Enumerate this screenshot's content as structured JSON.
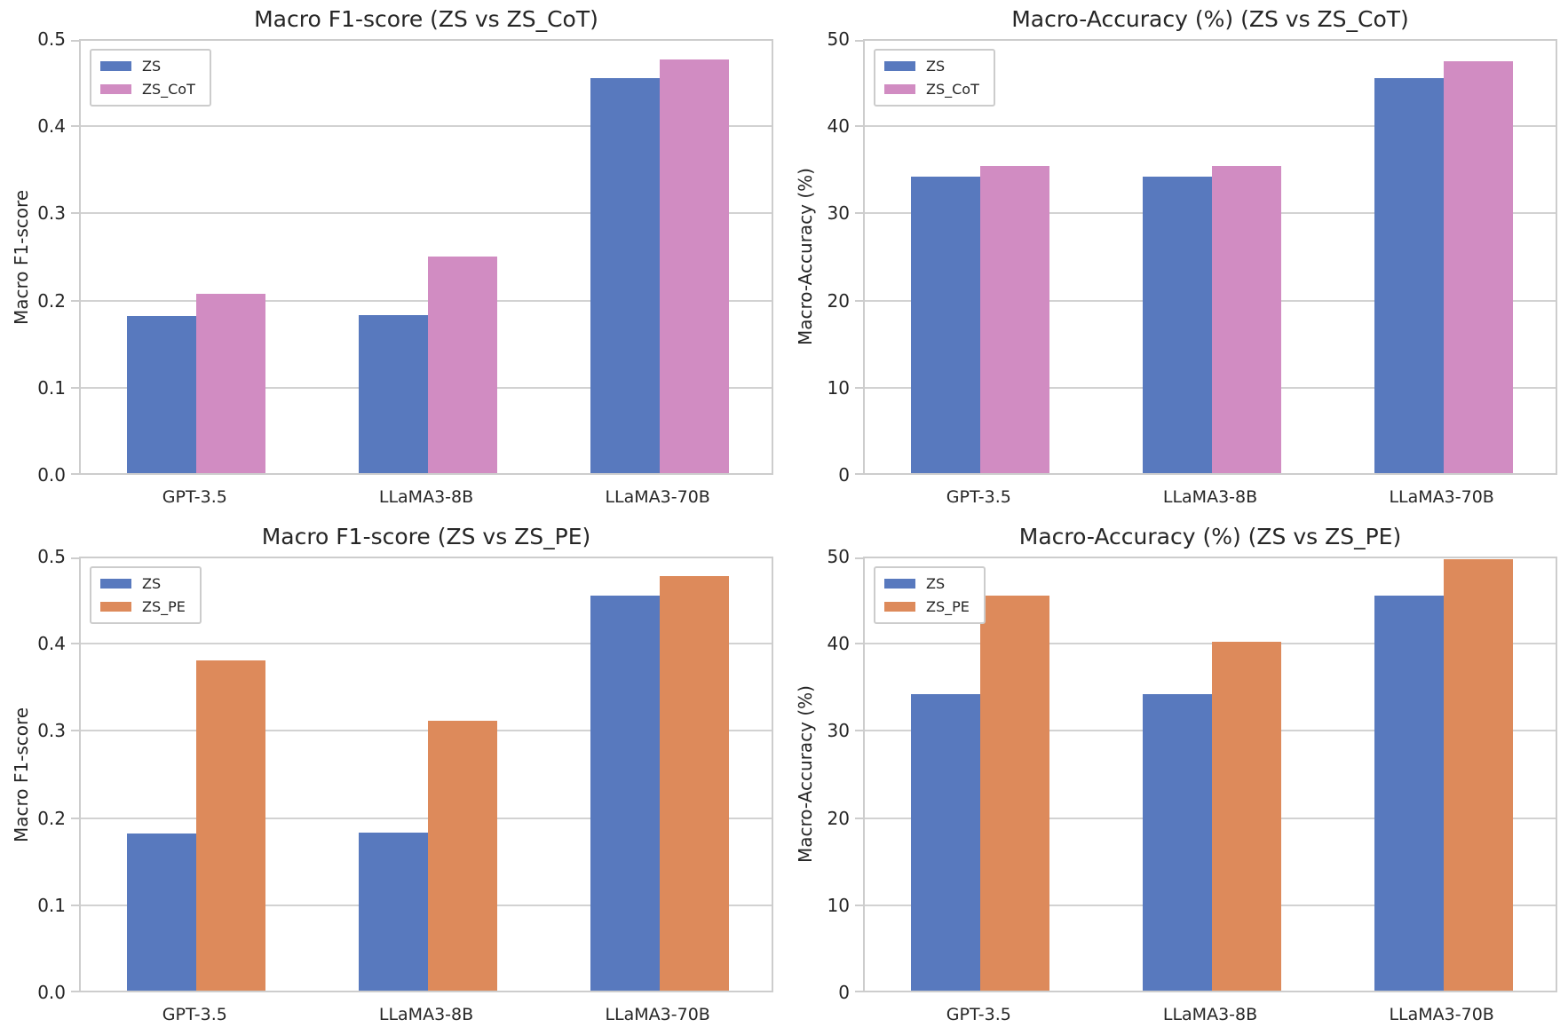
{
  "figure": {
    "background": "#ffffff",
    "text_color": "#262626",
    "grid_color": "#d2d2d2",
    "spine_color": "#cdcdcd"
  },
  "chart_data": [
    {
      "type": "bar",
      "position": "top-left",
      "title": "Macro F1-score (ZS vs ZS_CoT)",
      "ylabel": "Macro F1-score",
      "xlabel": "",
      "categories": [
        "GPT-3.5",
        "LLaMA3-8B",
        "LLaMA3-70B"
      ],
      "series": [
        {
          "name": "ZS",
          "color": "#5879BE",
          "values": [
            0.18,
            0.181,
            0.453
          ]
        },
        {
          "name": "ZS_CoT",
          "color": "#D18CC2",
          "values": [
            0.206,
            0.248,
            0.475
          ]
        }
      ],
      "ylim": [
        0,
        0.5
      ],
      "yticks": [
        0,
        0.1,
        0.2,
        0.3,
        0.4,
        0.5
      ],
      "ytick_labels": [
        "0.0",
        "0.1",
        "0.2",
        "0.3",
        "0.4",
        "0.5"
      ],
      "grid": true,
      "legend_position": "upper-left"
    },
    {
      "type": "bar",
      "position": "top-right",
      "title": "Macro-Accuracy (%) (ZS vs ZS_CoT)",
      "ylabel": "Macro-Accuracy (%)",
      "xlabel": "",
      "categories": [
        "GPT-3.5",
        "LLaMA3-8B",
        "LLaMA3-70B"
      ],
      "series": [
        {
          "name": "ZS",
          "color": "#5879BE",
          "values": [
            34,
            34,
            45.3
          ]
        },
        {
          "name": "ZS_CoT",
          "color": "#D18CC2",
          "values": [
            35.2,
            35.2,
            47.3
          ]
        }
      ],
      "ylim": [
        0,
        50
      ],
      "yticks": [
        0,
        10,
        20,
        30,
        40,
        50
      ],
      "ytick_labels": [
        "0",
        "10",
        "20",
        "30",
        "40",
        "50"
      ],
      "grid": true,
      "legend_position": "upper-left"
    },
    {
      "type": "bar",
      "position": "bottom-left",
      "title": "Macro F1-score (ZS vs ZS_PE)",
      "ylabel": "Macro F1-score",
      "xlabel": "",
      "categories": [
        "GPT-3.5",
        "LLaMA3-8B",
        "LLaMA3-70B"
      ],
      "series": [
        {
          "name": "ZS",
          "color": "#5879BE",
          "values": [
            0.18,
            0.181,
            0.453
          ]
        },
        {
          "name": "ZS_PE",
          "color": "#DD8A5B",
          "values": [
            0.379,
            0.31,
            0.476
          ]
        }
      ],
      "ylim": [
        0,
        0.5
      ],
      "yticks": [
        0,
        0.1,
        0.2,
        0.3,
        0.4,
        0.5
      ],
      "ytick_labels": [
        "0.0",
        "0.1",
        "0.2",
        "0.3",
        "0.4",
        "0.5"
      ],
      "grid": true,
      "legend_position": "upper-left"
    },
    {
      "type": "bar",
      "position": "bottom-right",
      "title": "Macro-Accuracy (%) (ZS vs ZS_PE)",
      "ylabel": "Macro-Accuracy (%)",
      "xlabel": "",
      "categories": [
        "GPT-3.5",
        "LLaMA3-8B",
        "LLaMA3-70B"
      ],
      "series": [
        {
          "name": "ZS",
          "color": "#5879BE",
          "values": [
            34,
            34,
            45.3
          ]
        },
        {
          "name": "ZS_PE",
          "color": "#DD8A5B",
          "values": [
            45.3,
            40,
            49.5
          ]
        }
      ],
      "ylim": [
        0,
        50
      ],
      "yticks": [
        0,
        10,
        20,
        30,
        40,
        50
      ],
      "ytick_labels": [
        "0",
        "10",
        "20",
        "30",
        "40",
        "50"
      ],
      "grid": true,
      "legend_position": "upper-left"
    }
  ]
}
